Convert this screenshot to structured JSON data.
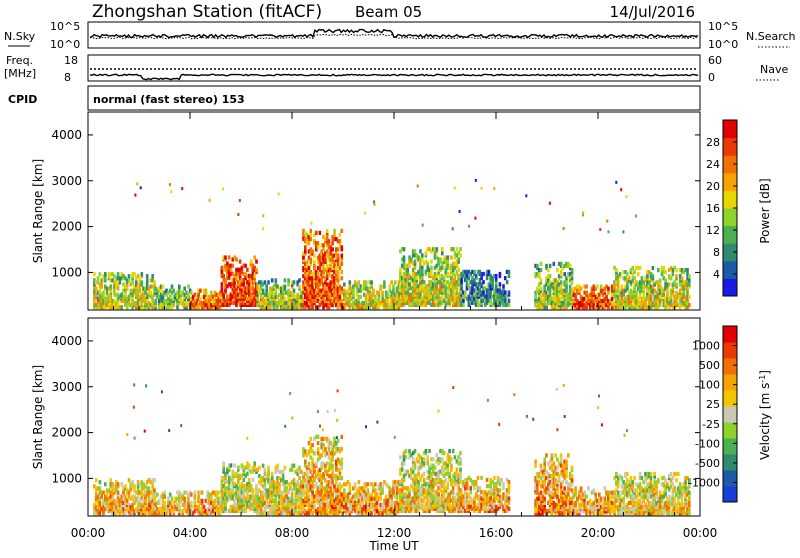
{
  "header": {
    "station": "Zhongshan Station (fitACF)",
    "beam": "Beam 05",
    "date": "14/Jul/2016"
  },
  "top_panels": {
    "nsky_label": "N.Sky",
    "nsky_ticks": [
      "10^5",
      "10^0"
    ],
    "nsearch_label": "N.Search",
    "nsearch_ticks": [
      "10^5",
      "10^0"
    ],
    "freq_label": "Freq.",
    "freq_unit": "[MHz]",
    "freq_ticks": [
      "18",
      "8"
    ],
    "nave_label": "Nave",
    "nave_ticks": [
      "60",
      "0"
    ],
    "cpid_label": "CPID",
    "cpid_text": "normal (fast stereo) 153"
  },
  "chart_data": [
    {
      "type": "heatmap",
      "name": "power",
      "ylabel": "Slant Range [km]",
      "yticks": [
        "1000",
        "2000",
        "3000",
        "4000"
      ],
      "ylim": [
        180,
        4500
      ],
      "xlim": [
        0,
        24
      ],
      "colorbar": {
        "label": "Power [dB]",
        "ticks": [
          "4",
          "8",
          "12",
          "16",
          "20",
          "24",
          "28"
        ],
        "colors": [
          "#1a1ae6",
          "#1e5aa8",
          "#2e8b6e",
          "#4caf50",
          "#8fd32a",
          "#e8d600",
          "#f5a300",
          "#f07000",
          "#e83a00",
          "#e00000"
        ]
      },
      "echo_regions": [
        {
          "t0": 0.2,
          "t1": 2.6,
          "r0": 200,
          "r1": 950,
          "level": 0.55
        },
        {
          "t0": 2.6,
          "t1": 4.0,
          "r0": 200,
          "r1": 700,
          "level": 0.45
        },
        {
          "t0": 4.0,
          "t1": 5.2,
          "r0": 200,
          "r1": 600,
          "level": 0.8
        },
        {
          "t0": 5.2,
          "t1": 6.6,
          "r0": 250,
          "r1": 1350,
          "level": 0.9
        },
        {
          "t0": 6.6,
          "t1": 8.4,
          "r0": 200,
          "r1": 850,
          "level": 0.5
        },
        {
          "t0": 8.4,
          "t1": 10.0,
          "r0": 200,
          "r1": 1900,
          "level": 0.85
        },
        {
          "t0": 10.0,
          "t1": 12.2,
          "r0": 200,
          "r1": 800,
          "level": 0.6
        },
        {
          "t0": 12.2,
          "t1": 14.6,
          "r0": 250,
          "r1": 1500,
          "level": 0.55
        },
        {
          "t0": 14.6,
          "t1": 16.5,
          "r0": 250,
          "r1": 1000,
          "level": 0.3
        },
        {
          "t0": 17.5,
          "t1": 19.0,
          "r0": 200,
          "r1": 1200,
          "level": 0.5
        },
        {
          "t0": 19.0,
          "t1": 20.6,
          "r0": 200,
          "r1": 700,
          "level": 0.85
        },
        {
          "t0": 20.6,
          "t1": 23.6,
          "r0": 200,
          "r1": 1100,
          "level": 0.55
        }
      ]
    },
    {
      "type": "heatmap",
      "name": "velocity",
      "ylabel": "Slant Range [km]",
      "yticks": [
        "1000",
        "2000",
        "3000",
        "4000"
      ],
      "ylim": [
        180,
        4500
      ],
      "xlim": [
        0,
        24
      ],
      "xlabel": "Time UT",
      "xticks": [
        "00:00",
        "04:00",
        "08:00",
        "12:00",
        "16:00",
        "20:00",
        "00:00"
      ],
      "colorbar": {
        "label": "Velocity [m s^-1]",
        "ticks": [
          "1000",
          "500",
          "100",
          "25",
          "-25",
          "-100",
          "-500",
          "-1000"
        ],
        "colors": [
          "#1a3fd6",
          "#1e5aa8",
          "#2e8b6e",
          "#4caf50",
          "#8fd32a",
          "#c8c8b4",
          "#f5c400",
          "#f5a300",
          "#f07000",
          "#e83a00",
          "#e00000"
        ]
      },
      "echo_regions": [
        {
          "t0": 0.2,
          "t1": 2.6,
          "r0": 200,
          "r1": 950,
          "level": 0.68
        },
        {
          "t0": 2.6,
          "t1": 4.0,
          "r0": 200,
          "r1": 700,
          "level": 0.7
        },
        {
          "t0": 4.0,
          "t1": 5.2,
          "r0": 200,
          "r1": 700,
          "level": 0.72
        },
        {
          "t0": 5.2,
          "t1": 6.6,
          "r0": 250,
          "r1": 1350,
          "level": 0.55
        },
        {
          "t0": 6.6,
          "t1": 8.4,
          "r0": 200,
          "r1": 1300,
          "level": 0.6
        },
        {
          "t0": 8.4,
          "t1": 10.0,
          "r0": 200,
          "r1": 1900,
          "level": 0.7
        },
        {
          "t0": 10.0,
          "t1": 12.2,
          "r0": 200,
          "r1": 900,
          "level": 0.72
        },
        {
          "t0": 12.2,
          "t1": 14.6,
          "r0": 250,
          "r1": 1600,
          "level": 0.6
        },
        {
          "t0": 14.6,
          "t1": 16.5,
          "r0": 250,
          "r1": 1000,
          "level": 0.7
        },
        {
          "t0": 17.5,
          "t1": 19.0,
          "r0": 200,
          "r1": 1500,
          "level": 0.75
        },
        {
          "t0": 19.0,
          "t1": 20.6,
          "r0": 200,
          "r1": 800,
          "level": 0.72
        },
        {
          "t0": 20.6,
          "t1": 23.6,
          "r0": 200,
          "r1": 1100,
          "level": 0.6
        }
      ]
    }
  ]
}
